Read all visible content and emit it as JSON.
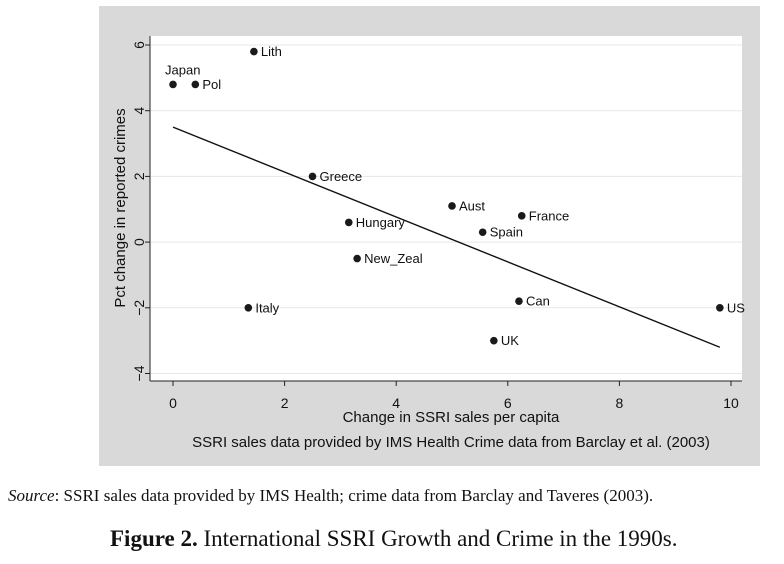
{
  "chart_data": {
    "type": "scatter",
    "xlabel": "Change in SSRI sales per capita",
    "ylabel": "Pct change in reported crimes",
    "note": "SSRI sales data provided by IMS Health Crime data from Barclay et al. (2003)",
    "xlim": [
      -0.5,
      10.2
    ],
    "ylim": [
      -4.4,
      6.2
    ],
    "xticks": [
      0,
      2,
      4,
      6,
      8,
      10
    ],
    "yticks": [
      -4,
      -2,
      0,
      2,
      4,
      6
    ],
    "grid": true,
    "colors": {
      "panel": "#d9d9d9",
      "plot": "#ffffff",
      "marker": "#1a1a1a",
      "grid": "#e3e8ee"
    },
    "points": [
      {
        "label": "Japan",
        "x": 0.0,
        "y": 4.8,
        "pos": "above"
      },
      {
        "label": "Pol",
        "x": 0.4,
        "y": 4.8,
        "pos": "right"
      },
      {
        "label": "Lith",
        "x": 1.45,
        "y": 5.8,
        "pos": "right"
      },
      {
        "label": "Greece",
        "x": 2.5,
        "y": 2.0,
        "pos": "right"
      },
      {
        "label": "Hungary",
        "x": 3.15,
        "y": 0.6,
        "pos": "right"
      },
      {
        "label": "New_Zeal",
        "x": 3.3,
        "y": -0.5,
        "pos": "right"
      },
      {
        "label": "Italy",
        "x": 1.35,
        "y": -2.0,
        "pos": "right"
      },
      {
        "label": "Aust",
        "x": 5.0,
        "y": 1.1,
        "pos": "right"
      },
      {
        "label": "Spain",
        "x": 5.55,
        "y": 0.3,
        "pos": "right"
      },
      {
        "label": "France",
        "x": 6.25,
        "y": 0.8,
        "pos": "right"
      },
      {
        "label": "Can",
        "x": 6.2,
        "y": -1.8,
        "pos": "right"
      },
      {
        "label": "UK",
        "x": 5.75,
        "y": -3.0,
        "pos": "right"
      },
      {
        "label": "US",
        "x": 9.8,
        "y": -2.0,
        "pos": "right"
      }
    ],
    "fit_line": {
      "x": [
        0.0,
        9.8
      ],
      "y": [
        3.5,
        -3.2
      ]
    }
  },
  "source": {
    "lead": "Source",
    "text": ": SSRI sales data provided by IMS Health; crime data from Barclay and Taveres (2003)."
  },
  "caption": {
    "label": "Figure 2.",
    "text": " International SSRI Growth and Crime in the 1990s."
  }
}
